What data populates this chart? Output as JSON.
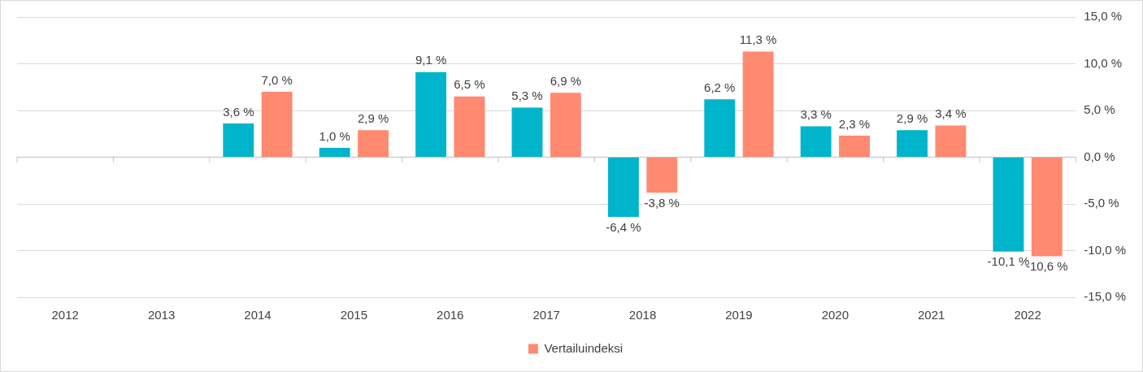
{
  "chart_data": {
    "type": "bar",
    "categories": [
      "2012",
      "2013",
      "2014",
      "2015",
      "2016",
      "2017",
      "2018",
      "2019",
      "2020",
      "2021",
      "2022"
    ],
    "series": [
      {
        "color": "#00b4cc",
        "values": [
          null,
          null,
          3.6,
          1.0,
          9.1,
          5.3,
          -6.4,
          6.2,
          3.3,
          2.9,
          -10.1
        ],
        "value_labels": [
          null,
          null,
          "3,6 %",
          "1,0 %",
          "9,1 %",
          "5,3 %",
          "-6,4 %",
          "6,2 %",
          "3,3 %",
          "2,9 %",
          "-10,1 %"
        ]
      },
      {
        "name": "Vertailuindeksi",
        "color": "#ff8a70",
        "values": [
          null,
          null,
          7.0,
          2.9,
          6.5,
          6.9,
          -3.8,
          11.3,
          2.3,
          3.4,
          -10.6
        ],
        "value_labels": [
          null,
          null,
          "7,0 %",
          "2,9 %",
          "6,5 %",
          "6,9 %",
          "-3,8 %",
          "11,3 %",
          "2,3 %",
          "3,4 %",
          "-10,6 %"
        ]
      }
    ],
    "ylim": [
      -15,
      15
    ],
    "yticks": [
      {
        "value": -15,
        "label": "-15,0 %"
      },
      {
        "value": -10,
        "label": "-10,0 %"
      },
      {
        "value": -5,
        "label": "-5,0 %"
      },
      {
        "value": 0,
        "label": "0,0 %"
      },
      {
        "value": 5,
        "label": "5,0 %"
      },
      {
        "value": 10,
        "label": "10,0 %"
      },
      {
        "value": 15,
        "label": "15,0 %"
      }
    ],
    "grid": "y",
    "legend": "bottom"
  }
}
